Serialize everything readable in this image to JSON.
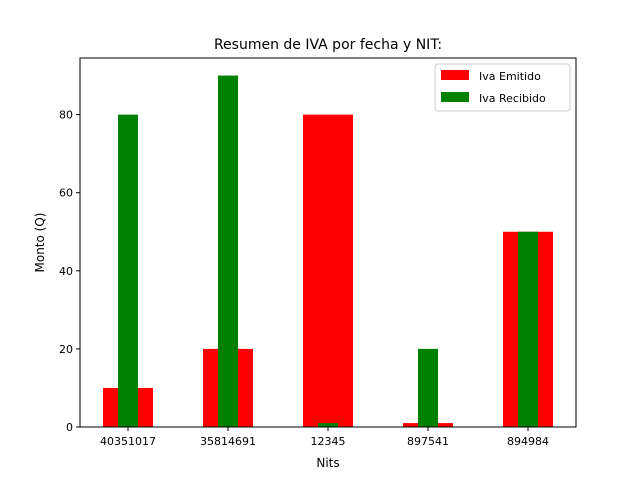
{
  "chart_data": {
    "type": "bar",
    "title": "Resumen de IVA por fecha y NIT:",
    "xlabel": "Nits",
    "ylabel": "Monto (Q)",
    "categories": [
      "40351017",
      "35814691",
      "12345",
      "897541",
      "894984"
    ],
    "series": [
      {
        "name": "Iva Emitido",
        "values": [
          10,
          20,
          80,
          1,
          50
        ],
        "color": "#ff0000"
      },
      {
        "name": "Iva Recibido",
        "values": [
          80,
          90,
          1,
          20,
          50
        ],
        "color": "#008000"
      }
    ],
    "ylim": [
      0,
      94.5
    ],
    "yticks": [
      0,
      20,
      40,
      60,
      80
    ],
    "legend_position": "top-right",
    "grid": false
  }
}
